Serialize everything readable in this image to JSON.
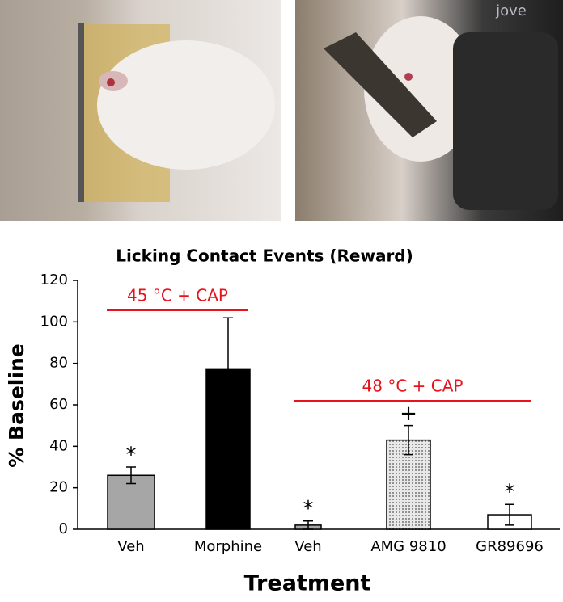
{
  "chart_data": {
    "type": "bar",
    "watermark": "jove",
    "title": "Licking Contact Events (Reward)",
    "x_label": "Treatment",
    "y_label": "% Baseline",
    "categories": [
      "Veh",
      "Morphine",
      "Veh",
      "AMG 9810",
      "GR89696"
    ],
    "values": [
      26,
      77,
      2,
      43,
      7
    ],
    "errors": [
      4,
      25,
      2,
      7,
      5
    ],
    "colors": [
      "#a6a6a6",
      "#000000",
      "#a6a6a6",
      "#d0d0d0",
      "#ffffff"
    ],
    "markers": [
      "*",
      null,
      "*",
      "+",
      "*"
    ],
    "groups": [
      {
        "label": "45 °C + CAP",
        "color": "#e8121b"
      },
      {
        "label": "48 °C + CAP",
        "color": "#e8121b"
      }
    ],
    "ylim": [
      0,
      120
    ],
    "yticks": [
      0,
      20,
      40,
      60,
      80,
      100,
      120
    ]
  }
}
